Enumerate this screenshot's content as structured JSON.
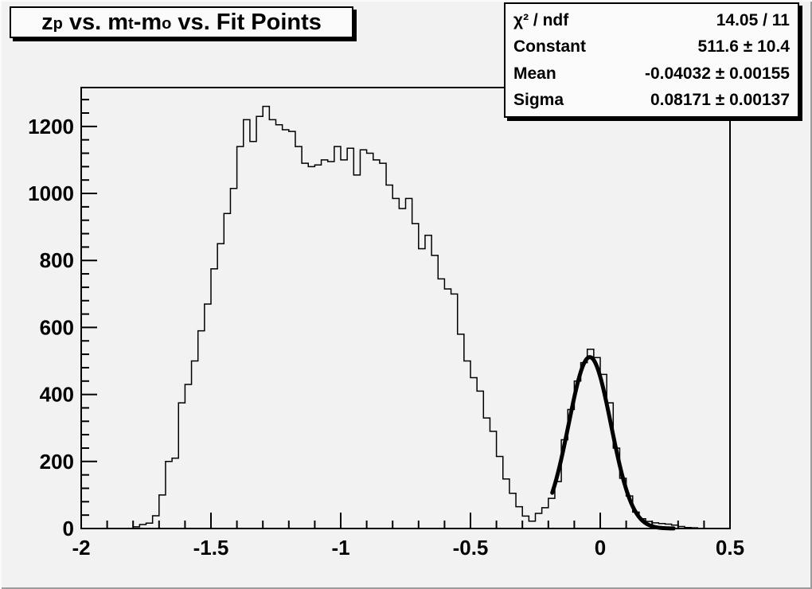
{
  "canvas": {
    "background_color": "#f2f2f2",
    "foreground_color": "#000000",
    "box_fill_color": "#fbfbfb"
  },
  "title": {
    "plain": "z_p vs. m_t-m_o vs. Fit Points",
    "segments": [
      {
        "text": "z"
      },
      {
        "text": "p",
        "sub": true
      },
      {
        "text": " vs. m"
      },
      {
        "text": "t",
        "sub": true
      },
      {
        "text": "-m"
      },
      {
        "text": "o",
        "sub": true
      },
      {
        "text": " vs. Fit Points"
      }
    ]
  },
  "stats": {
    "rows": [
      {
        "label": "χ² / ndf",
        "value": "14.05 / 11"
      },
      {
        "label": "Constant",
        "value": "511.6 ± 10.4"
      },
      {
        "label": "Mean",
        "value": "-0.04032 ± 0.00155"
      },
      {
        "label": "Sigma",
        "value": "0.08171 ± 0.00137"
      }
    ]
  },
  "chart_data": {
    "type": "bar",
    "subtype": "histogram-step",
    "title": "z_p vs. m_t-m_o vs. Fit Points",
    "xlabel": "",
    "ylabel": "",
    "xlim": [
      -2,
      0.5
    ],
    "ylim": [
      0,
      1316
    ],
    "grid": false,
    "legend": false,
    "x_ticks": [
      -2,
      -1.5,
      -1,
      -0.5,
      0,
      0.5
    ],
    "x_tick_labels": [
      "-2",
      "-1.5",
      "-1",
      "-0.5",
      "0",
      "0.5"
    ],
    "y_ticks": [
      0,
      200,
      400,
      600,
      800,
      1000,
      1200
    ],
    "y_tick_labels": [
      "0",
      "200",
      "400",
      "600",
      "800",
      "1000",
      "1200"
    ],
    "minor_x_step": 0.1,
    "minor_y_step": 40,
    "bin_start": -2,
    "bin_width": 0.025,
    "values": [
      0,
      0,
      0,
      0,
      0,
      0,
      0,
      0,
      5,
      12,
      16,
      38,
      100,
      200,
      210,
      375,
      430,
      500,
      590,
      670,
      775,
      850,
      940,
      1015,
      1140,
      1220,
      1155,
      1230,
      1260,
      1220,
      1205,
      1190,
      1185,
      1140,
      1090,
      1080,
      1085,
      1100,
      1095,
      1140,
      1100,
      1135,
      1055,
      1130,
      1120,
      1100,
      1090,
      1025,
      985,
      955,
      985,
      910,
      835,
      875,
      815,
      745,
      715,
      700,
      580,
      500,
      450,
      410,
      330,
      290,
      215,
      148,
      105,
      65,
      37,
      22,
      45,
      62,
      90,
      140,
      265,
      355,
      440,
      495,
      535,
      510,
      460,
      375,
      240,
      150,
      97,
      49,
      29,
      21,
      17,
      15,
      13,
      10,
      6,
      3,
      2,
      0,
      0,
      0,
      0,
      0
    ],
    "fit": {
      "type": "gaussian",
      "constant": 511.6,
      "mean": -0.04032,
      "sigma": 0.08171,
      "chi2": 14.05,
      "ndf": 11,
      "draw_range": [
        -0.185,
        0.285
      ]
    }
  }
}
